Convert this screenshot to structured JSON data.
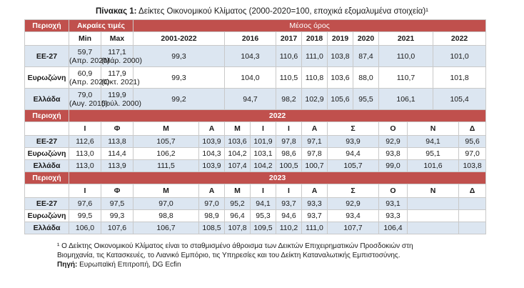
{
  "caption": {
    "prefix": "Πίνακας 1:",
    "text": " Δείκτες Οικονομικού Κλίματος (2000-2020=100, εποχικά εξομαλυμένα στοιχεία)¹"
  },
  "headers": {
    "region": "Περιοχή",
    "extremes": "Ακραίες τιμές",
    "average": "Μέσος όρος",
    "min": "Min",
    "max": "Max",
    "avg_cols": [
      "2001-2022",
      "2016",
      "2017",
      "2018",
      "2019",
      "2020",
      "2021",
      "2022"
    ]
  },
  "top_rows": [
    {
      "label": "ΕΕ-27",
      "min_val": "59,7",
      "min_date": "(Απρ. 2020)",
      "max_val": "117,1",
      "max_date": "(Μάρ. 2000)",
      "avgs": [
        "99,3",
        "104,3",
        "110,6",
        "111,0",
        "103,8",
        "87,4",
        "110,0",
        "101,0"
      ]
    },
    {
      "label": "Ευρωζώνη",
      "min_val": "60,9",
      "min_date": "(Απρ. 2020)",
      "max_val": "117,9",
      "max_date": "(Οκτ. 2021)",
      "avgs": [
        "99,3",
        "104,0",
        "110,5",
        "110,8",
        "103,6",
        "88,0",
        "110,7",
        "101,8"
      ]
    },
    {
      "label": "Ελλάδα",
      "min_val": "79,0",
      "min_date": "(Αυγ. 2015)",
      "max_val": "119,9",
      "max_date": "(Ιούλ. 2000)",
      "avgs": [
        "99,2",
        "94,7",
        "98,2",
        "102,9",
        "105,6",
        "95,5",
        "106,1",
        "105,4"
      ]
    }
  ],
  "months": [
    "Ι",
    "Φ",
    "Μ",
    "Α",
    "Μ",
    "Ι",
    "Ι",
    "Α",
    "Σ",
    "Ο",
    "Ν",
    "Δ"
  ],
  "y2022": {
    "region": "Περιοχή",
    "year": "2022",
    "rows": [
      {
        "label": "ΕΕ-27",
        "vals": [
          "112,6",
          "113,8",
          "105,7",
          "103,9",
          "103,6",
          "101,9",
          "97,8",
          "97,1",
          "93,9",
          "92,9",
          "94,1",
          "95,6"
        ]
      },
      {
        "label": "Ευρωζώνη",
        "vals": [
          "113,0",
          "114,4",
          "106,2",
          "104,3",
          "104,2",
          "103,1",
          "98,6",
          "97,8",
          "94,4",
          "93,8",
          "95,1",
          "97,0"
        ]
      },
      {
        "label": "Ελλάδα",
        "vals": [
          "113,0",
          "113,9",
          "111,5",
          "103,9",
          "107,4",
          "104,2",
          "100,5",
          "100,7",
          "105,7",
          "99,0",
          "101,6",
          "103,8"
        ]
      }
    ]
  },
  "y2023": {
    "region": "Περιοχή",
    "year": "2023",
    "rows": [
      {
        "label": "ΕΕ-27",
        "vals": [
          "97,6",
          "97,5",
          "97,0",
          "97,0",
          "95,2",
          "94,1",
          "93,7",
          "93,3",
          "92,9",
          "93,1",
          "",
          ""
        ]
      },
      {
        "label": "Ευρωζώνη",
        "vals": [
          "99,5",
          "99,3",
          "98,8",
          "98,9",
          "96,4",
          "95,3",
          "94,6",
          "93,7",
          "93,4",
          "93,3",
          "",
          ""
        ]
      },
      {
        "label": "Ελλάδα",
        "vals": [
          "106,0",
          "107,6",
          "106,7",
          "108,5",
          "107,8",
          "109,5",
          "110,2",
          "111,0",
          "107,7",
          "106,4",
          "",
          ""
        ]
      }
    ]
  },
  "footnote": {
    "line1": "¹ Ο Δείκτης Οικονομικού Κλίματος είναι το σταθμισμένο άθροισμα των Δεικτών Επιχειρηματικών Προσδοκιών στη",
    "line2": "Βιομηχανία, τις Κατασκευές, το Λιανικό Εμπόριο, τις Υπηρεσίες και του Δείκτη Καταναλωτικής Εμπιστοσύνης.",
    "source_label": "Πηγή:",
    "source_text": " Ευρωπαϊκή Επιτροπή, DG Ecfin"
  }
}
